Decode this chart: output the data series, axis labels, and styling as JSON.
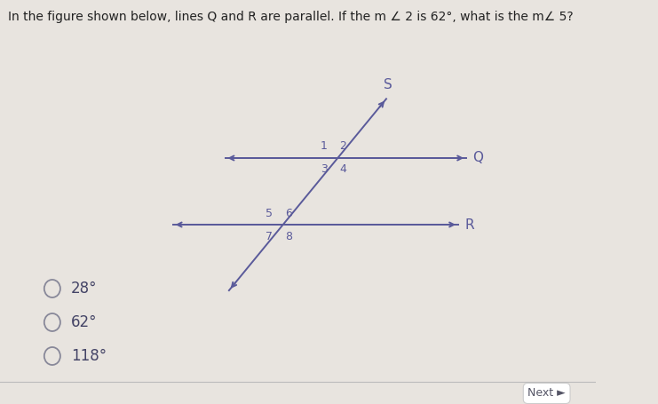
{
  "title": "In the figure shown below, lines Q and R are parallel. If the m ∠ 2 is 62°, what is the m∠ 5?",
  "bg_color": "#e8e4df",
  "line_color": "#5a5a9a",
  "text_color": "#5a5a9a",
  "label_color": "#111111",
  "choices": [
    "28°",
    "62°",
    "118°"
  ],
  "next_label": "Next ►",
  "Q_label": "Q",
  "R_label": "R",
  "S_label": "S",
  "angle_labels_upper": [
    "1",
    "2",
    "3",
    "4"
  ],
  "angle_labels_lower": [
    "5",
    "6",
    "7",
    "8"
  ]
}
